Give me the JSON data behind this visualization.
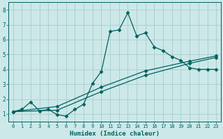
{
  "xlabel": "Humidex (Indice chaleur)",
  "bg_color": "#cce8e8",
  "line_color": "#006060",
  "grid_color": "#aacccc",
  "xlim": [
    -0.5,
    23.5
  ],
  "ylim": [
    0.5,
    8.5
  ],
  "xticks": [
    0,
    1,
    2,
    3,
    4,
    5,
    6,
    7,
    8,
    9,
    10,
    11,
    12,
    13,
    14,
    15,
    16,
    17,
    18,
    19,
    20,
    21,
    22,
    23
  ],
  "yticks": [
    1,
    2,
    3,
    4,
    5,
    6,
    7,
    8
  ],
  "line1_x": [
    0,
    1,
    2,
    3,
    4,
    5,
    6,
    7,
    8,
    9,
    10,
    11,
    12,
    13,
    14,
    15,
    16,
    17,
    18,
    19,
    20,
    21,
    22,
    23
  ],
  "line1_y": [
    1.15,
    1.3,
    1.8,
    1.2,
    1.3,
    0.95,
    0.85,
    1.3,
    1.65,
    3.05,
    3.85,
    6.55,
    6.65,
    7.8,
    6.25,
    6.45,
    5.5,
    5.25,
    4.85,
    4.6,
    4.1,
    4.0,
    4.0,
    4.0
  ],
  "line2_x": [
    0,
    5,
    10,
    15,
    20,
    23
  ],
  "line2_y": [
    1.15,
    1.25,
    2.5,
    3.6,
    4.4,
    4.8
  ],
  "line3_x": [
    0,
    5,
    10,
    15,
    20,
    23
  ],
  "line3_y": [
    1.15,
    1.5,
    2.8,
    3.9,
    4.55,
    4.9
  ],
  "marker": "D",
  "markersize": 2.5,
  "linewidth": 0.9
}
